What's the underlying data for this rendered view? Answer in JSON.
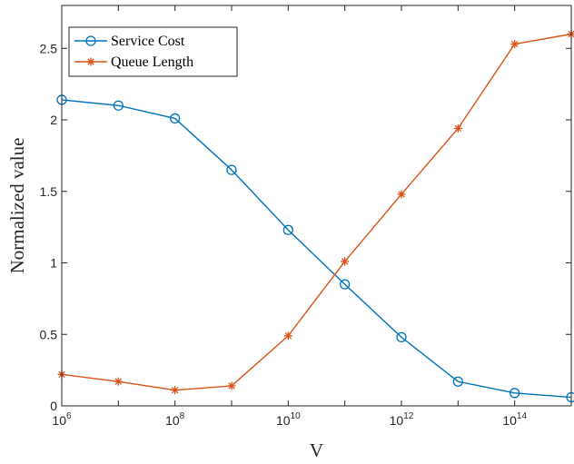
{
  "chart_data": {
    "type": "line",
    "x_scale": "log",
    "x": [
      1000000.0,
      10000000.0,
      100000000.0,
      1000000000.0,
      10000000000.0,
      100000000000.0,
      1000000000000.0,
      10000000000000.0,
      100000000000000.0,
      1000000000000000.0
    ],
    "xlim": [
      1000000.0,
      1000000000000000.0
    ],
    "ylim": [
      0,
      2.8
    ],
    "xlabel": "V",
    "ylabel": "Normalized value",
    "x_ticks": [
      {
        "value": 1000000.0,
        "base": "10",
        "exp": "6"
      },
      {
        "value": 100000000.0,
        "base": "10",
        "exp": "8"
      },
      {
        "value": 10000000000.0,
        "base": "10",
        "exp": "10"
      },
      {
        "value": 1000000000000.0,
        "base": "10",
        "exp": "12"
      },
      {
        "value": 100000000000000.0,
        "base": "10",
        "exp": "14"
      }
    ],
    "y_ticks": [
      {
        "value": 0,
        "label": "0"
      },
      {
        "value": 0.5,
        "label": "0.5"
      },
      {
        "value": 1,
        "label": "1"
      },
      {
        "value": 1.5,
        "label": "1.5"
      },
      {
        "value": 2,
        "label": "2"
      },
      {
        "value": 2.5,
        "label": "2.5"
      }
    ],
    "series": [
      {
        "name": "Service Cost",
        "color": "#0072BD",
        "marker": "circle",
        "values": [
          2.14,
          2.1,
          2.01,
          1.65,
          1.23,
          0.85,
          0.48,
          0.17,
          0.09,
          0.06
        ]
      },
      {
        "name": "Queue Length",
        "color": "#D95319",
        "marker": "asterisk",
        "values": [
          0.22,
          0.17,
          0.11,
          0.14,
          0.49,
          1.01,
          1.48,
          1.94,
          2.53,
          2.6
        ]
      }
    ],
    "grid": false,
    "legend_position": "top-left",
    "box": true
  }
}
